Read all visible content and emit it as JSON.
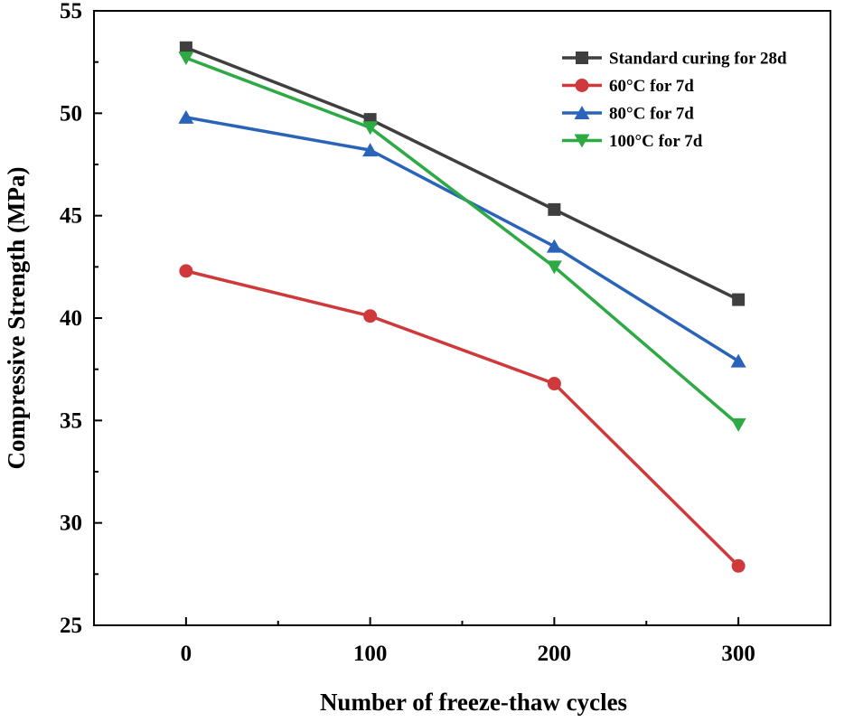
{
  "chart_data": {
    "type": "line",
    "title": "",
    "xlabel": "Number of freeze-thaw cycles",
    "ylabel": "Compressive Strength (MPa)",
    "x": [
      0,
      100,
      200,
      300
    ],
    "xticks": [
      0,
      100,
      200,
      300
    ],
    "xlim": [
      -50,
      350
    ],
    "ylim": [
      25,
      55
    ],
    "yticks": [
      25,
      30,
      35,
      40,
      45,
      50,
      55
    ],
    "grid": false,
    "legend_position": "top-right",
    "series": [
      {
        "name": "Standard curing for 28d",
        "values": [
          53.2,
          49.7,
          45.3,
          40.9
        ],
        "color": "#3f3f3f",
        "marker": "square"
      },
      {
        "name": "60°C for 7d",
        "values": [
          42.3,
          40.1,
          36.8,
          27.9
        ],
        "color": "#d0393b",
        "marker": "circle"
      },
      {
        "name": "80°C for 7d",
        "values": [
          49.8,
          48.2,
          43.5,
          37.9
        ],
        "color": "#2a64b8",
        "marker": "triangle-up"
      },
      {
        "name": "100°C for 7d",
        "values": [
          52.7,
          49.3,
          42.5,
          34.8
        ],
        "color": "#2eaa45",
        "marker": "triangle-down"
      }
    ]
  }
}
